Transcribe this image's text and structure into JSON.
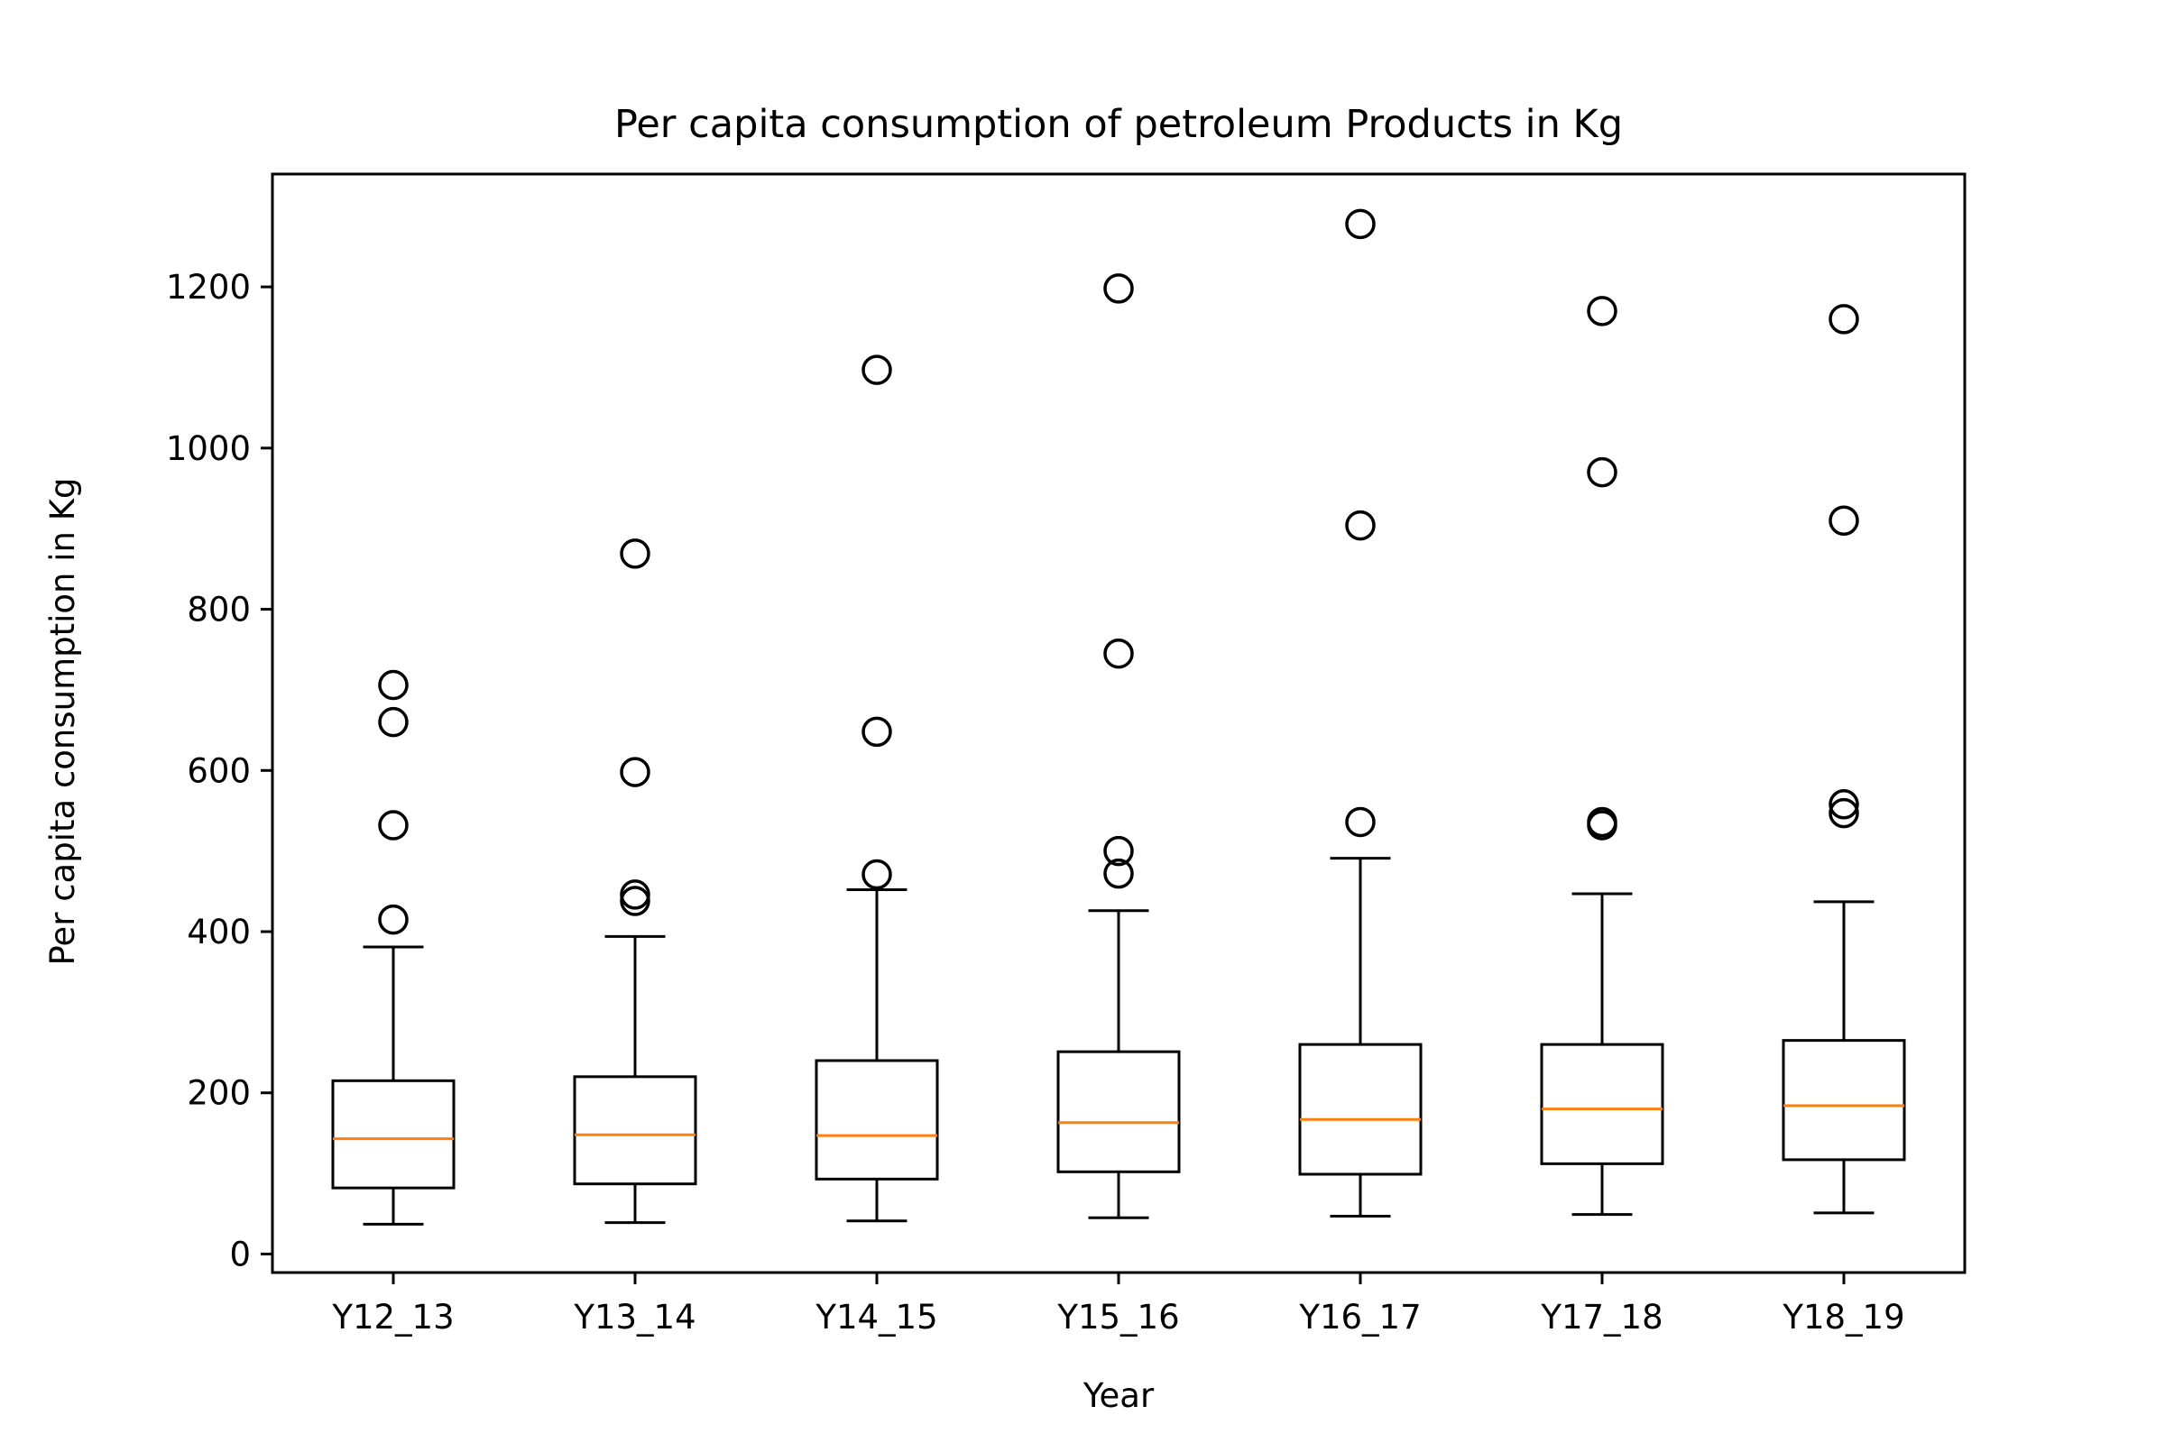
{
  "chart_data": {
    "type": "box",
    "title": "Per capita consumption of petroleum Products in Kg",
    "xlabel": "Year",
    "ylabel": "Per capita consumption in Kg",
    "categories": [
      "Y12_13",
      "Y13_14",
      "Y14_15",
      "Y15_16",
      "Y16_17",
      "Y17_18",
      "Y18_19"
    ],
    "ylim": [
      -23,
      1340
    ],
    "yticks": [
      0,
      200,
      400,
      600,
      800,
      1000,
      1200
    ],
    "grid": false,
    "boxes": [
      {
        "category": "Y12_13",
        "whisker_low": 37,
        "q1": 82,
        "median": 143,
        "q3": 215,
        "whisker_high": 381,
        "outliers": [
          415,
          532,
          660,
          706
        ]
      },
      {
        "category": "Y13_14",
        "whisker_low": 39,
        "q1": 87,
        "median": 148,
        "q3": 220,
        "whisker_high": 394,
        "outliers": [
          438,
          446,
          598,
          869
        ]
      },
      {
        "category": "Y14_15",
        "whisker_low": 41,
        "q1": 93,
        "median": 147,
        "q3": 240,
        "whisker_high": 452,
        "outliers": [
          471,
          648,
          1097
        ]
      },
      {
        "category": "Y15_16",
        "whisker_low": 45,
        "q1": 102,
        "median": 163,
        "q3": 251,
        "whisker_high": 426,
        "outliers": [
          472,
          500,
          745,
          1198
        ]
      },
      {
        "category": "Y16_17",
        "whisker_low": 47,
        "q1": 99,
        "median": 167,
        "q3": 260,
        "whisker_high": 491,
        "outliers": [
          536,
          904,
          1278
        ]
      },
      {
        "category": "Y17_18",
        "whisker_low": 49,
        "q1": 112,
        "median": 180,
        "q3": 260,
        "whisker_high": 447,
        "outliers": [
          532,
          536,
          970,
          1170
        ]
      },
      {
        "category": "Y18_19",
        "whisker_low": 51,
        "q1": 117,
        "median": 184,
        "q3": 265,
        "whisker_high": 437,
        "outliers": [
          547,
          558,
          910,
          1160
        ]
      }
    ],
    "colors": {
      "box": "#000000",
      "median": "#ff7f0e",
      "outlier": "#000000"
    }
  }
}
